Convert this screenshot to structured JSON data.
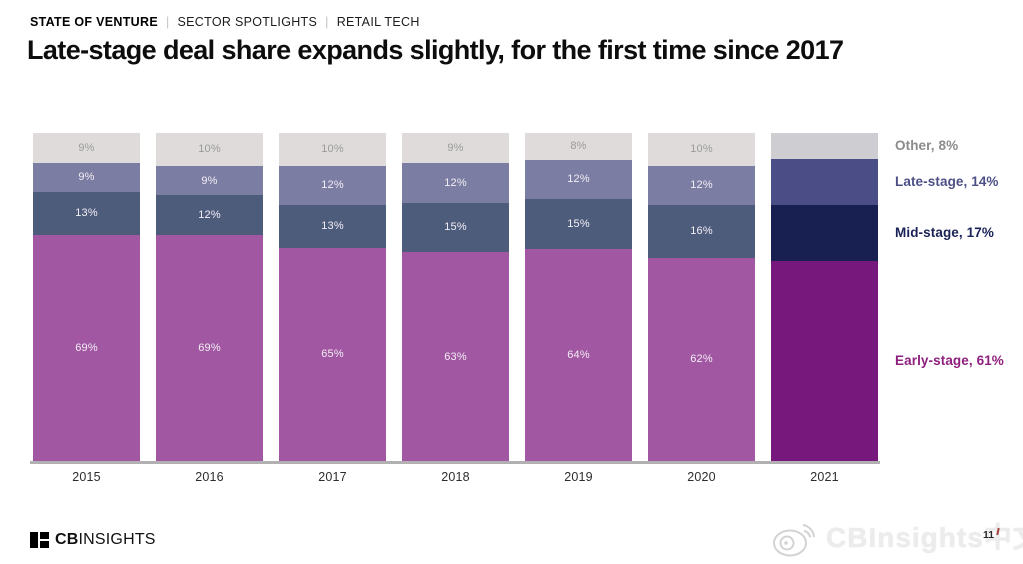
{
  "header": {
    "eyebrow": [
      "STATE OF VENTURE",
      "SECTOR SPOTLIGHTS",
      "RETAIL TECH"
    ],
    "separator": "|",
    "title": "Late-stage deal share expands slightly, for the first time since 2017"
  },
  "chart_data": {
    "type": "bar",
    "stacked": true,
    "stack_order": "top-to-bottom",
    "categories": [
      "2015",
      "2016",
      "2017",
      "2018",
      "2019",
      "2020",
      "2021"
    ],
    "series": [
      {
        "name": "Other",
        "values": [
          9,
          10,
          10,
          9,
          8,
          10,
          8
        ],
        "color": "#dedbda",
        "highlight_color": "#cecdd2",
        "label_color": "#9b9b9b"
      },
      {
        "name": "Late-stage",
        "values": [
          9,
          9,
          12,
          12,
          12,
          12,
          14
        ],
        "color": "#7c7da3",
        "highlight_color": "#4b4e86",
        "label_color": "#f2eef5"
      },
      {
        "name": "Mid-stage",
        "values": [
          13,
          12,
          13,
          15,
          15,
          16,
          17
        ],
        "color": "#4e5c7c",
        "highlight_color": "#172051",
        "label_color": "#f2eef5"
      },
      {
        "name": "Early-stage",
        "values": [
          69,
          69,
          65,
          63,
          64,
          62,
          61
        ],
        "color": "#a157a2",
        "highlight_color": "#76187c",
        "label_color": "#f2eef5"
      }
    ],
    "highlight_category": "2021",
    "value_labels_hidden_for": [
      "2021"
    ],
    "value_suffix": "%",
    "legend": [
      {
        "label": "Other, 8%",
        "color": "#8b8b8b"
      },
      {
        "label": "Late-stage, 14%",
        "color": "#4d5086"
      },
      {
        "label": "Mid-stage, 17%",
        "color": "#1a2257"
      },
      {
        "label": "Early-stage, 61%",
        "color": "#8e1f7f"
      }
    ],
    "legend_position": "right",
    "grid": false,
    "ylim": [
      0,
      100
    ],
    "title": "Late-stage deal share expands slightly, for the first time since 2017",
    "xlabel": "",
    "ylabel": ""
  },
  "footer": {
    "logo_bold": "CB",
    "logo_regular": "INSIGHTS",
    "watermark_text": "CBInsights中文",
    "page_number": "11"
  }
}
